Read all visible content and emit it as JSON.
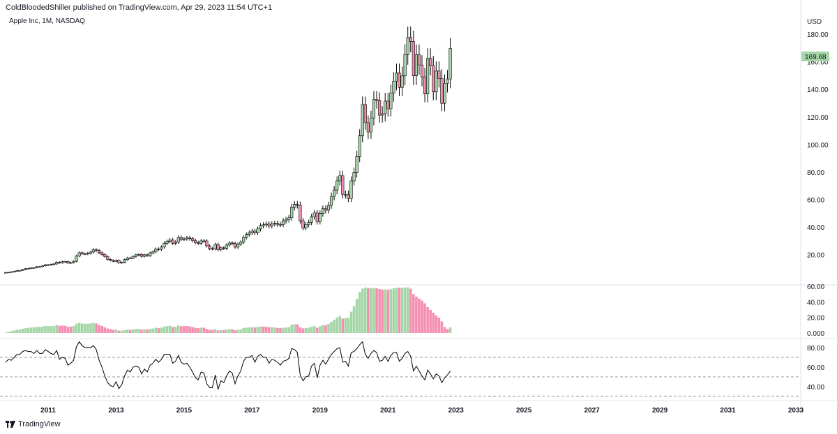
{
  "header": "ColdBloodedShiller published on TradingView.com, Apr 29, 2023 11:54 UTC+1",
  "symbol": "Apple Inc, 1M, NASDAQ",
  "currency": "USD",
  "footer_brand": "TradingView",
  "colors": {
    "up": "#a5d6a7",
    "down": "#f48fb1",
    "wick": "#000000",
    "price_label": "#a5d6a7",
    "rsi_line": "#000000"
  },
  "chart_data": [
    {
      "type": "candlestick",
      "title": "Apple Inc, 1M, NASDAQ",
      "ylabel": "USD",
      "ylim": [
        0,
        190
      ],
      "xlim": [
        2009.8,
        2033.3
      ],
      "x_ticks": [
        "2011",
        "2013",
        "2015",
        "2017",
        "2019",
        "2021",
        "2023",
        "2025",
        "2027",
        "2029",
        "2031",
        "2033"
      ],
      "y_ticks": [
        "20.00",
        "40.00",
        "60.00",
        "80.00",
        "100.00",
        "120.00",
        "140.00",
        "160.00",
        "180.00"
      ],
      "last_price": "169.68",
      "series": [
        {
          "close": [
            7.0,
            7.2,
            7.5,
            7.8,
            8.4,
            8.5,
            9.2,
            9.7,
            10.0,
            10.4,
            10.5,
            11.2,
            11.2,
            11.8,
            12.6,
            12.6,
            12.8,
            13.2,
            14.5,
            14.0,
            14.9,
            15.0,
            13.8,
            14.2,
            15.1,
            19.0,
            21.3,
            20.6,
            20.5,
            21.0,
            21.8,
            23.5,
            23.0,
            21.3,
            20.1,
            18.6,
            16.5,
            15.8,
            15.1,
            15.8,
            14.0,
            14.3,
            16.3,
            17.6,
            17.5,
            18.6,
            19.8,
            20.1,
            18.7,
            19.8,
            19.2,
            21.2,
            22.0,
            24.1,
            23.8,
            25.5,
            28.2,
            29.6,
            30.6,
            28.2,
            29.1,
            32.5,
            31.2,
            31.4,
            32.1,
            31.5,
            30.2,
            28.7,
            28.2,
            29.9,
            29.9,
            26.3,
            24.3,
            24.2,
            27.4,
            23.4,
            24.9,
            24.4,
            26.9,
            28.4,
            28.2,
            25.4,
            27.6,
            29.0,
            32.6,
            34.6,
            35.9,
            37.0,
            36.0,
            38.6,
            41.0,
            41.6,
            42.3,
            40.9,
            42.3,
            42.7,
            41.9,
            41.8,
            44.5,
            45.3,
            46.7,
            54.5,
            56.4,
            55.9,
            44.5,
            39.4,
            41.7,
            43.3,
            47.5,
            50.2,
            43.8,
            49.8,
            53.3,
            52.2,
            55.8,
            62.2,
            66.8,
            73.4,
            77.4,
            63.6,
            63.6,
            60.8,
            73.4,
            79.6,
            91.2,
            106.3,
            129.0,
            115.8,
            108.9,
            119.1,
            132.7,
            131.9,
            121.3,
            122.2,
            131.5,
            125.9,
            137.3,
            145.9,
            151.8,
            141.5,
            149.8,
            165.3,
            177.6,
            174.8,
            149.9,
            165.1,
            157.7,
            148.8,
            136.7,
            162.5,
            157.2,
            138.2,
            153.3,
            148.0,
            129.9,
            144.3,
            147.4,
            169.7
          ]
        }
      ]
    },
    {
      "type": "bar",
      "y_ticks": [
        "0.000",
        "20.00",
        "40.00",
        "60.00"
      ],
      "ylim": [
        0,
        62
      ],
      "values": [
        0.5,
        1.5,
        2.4,
        3.3,
        4.3,
        4.4,
        5.4,
        6.2,
        6.5,
        7.1,
        7.2,
        7.9,
        7.8,
        8.2,
        9.0,
        8.8,
        8.8,
        9.0,
        10.2,
        9.2,
        9.6,
        9.4,
        8.0,
        8.2,
        8.8,
        11.8,
        13.1,
        12.2,
        11.8,
        11.8,
        12.2,
        13.0,
        12.2,
        10.4,
        9.0,
        7.4,
        5.7,
        5.0,
        4.2,
        4.5,
        3.0,
        3.0,
        3.8,
        4.5,
        4.2,
        4.6,
        5.3,
        5.3,
        4.3,
        4.8,
        4.3,
        5.3,
        5.7,
        6.7,
        6.2,
        6.9,
        8.3,
        8.8,
        9.3,
        7.8,
        8.1,
        9.7,
        8.9,
        8.8,
        9.0,
        8.5,
        7.7,
        6.6,
        6.2,
        6.9,
        6.8,
        5.1,
        4.1,
        3.9,
        5.2,
        3.3,
        3.9,
        3.6,
        4.6,
        5.1,
        4.8,
        3.4,
        4.2,
        4.6,
        6.2,
        6.9,
        7.2,
        7.5,
        7.2,
        7.9,
        8.3,
        8.2,
        8.0,
        7.3,
        7.4,
        7.1,
        6.6,
        6.2,
        6.8,
        7.0,
        7.5,
        10.4,
        11.3,
        11.2,
        7.2,
        5.9,
        6.4,
        6.8,
        8.1,
        9.0,
        6.8,
        8.7,
        10.2,
        10.1,
        11.6,
        14.3,
        16.8,
        19.9,
        21.7,
        18.5,
        19.2,
        19.4,
        27.3,
        34.6,
        43.8,
        52.7,
        57.1,
        58.5,
        57.8,
        58.1,
        57.5,
        57.7,
        56.3,
        55.7,
        56.0,
        55.6,
        56.3,
        57.6,
        58.3,
        58.3,
        58.3,
        58.5,
        58.6,
        56.8,
        49.8,
        46.8,
        44.3,
        41.7,
        38.2,
        33.3,
        29.7,
        26.1,
        22.6,
        19.8,
        14.8,
        7.6,
        5.2,
        7.2
      ],
      "bar_colors": [
        "up",
        "up",
        "up",
        "up",
        "up",
        "up",
        "up",
        "up",
        "up",
        "up",
        "up",
        "up",
        "up",
        "up",
        "up",
        "up",
        "up",
        "up",
        "up",
        "down",
        "down",
        "down",
        "down",
        "down",
        "up",
        "up",
        "up",
        "up",
        "up",
        "up",
        "up",
        "up",
        "down",
        "down",
        "down",
        "down",
        "down",
        "down",
        "down",
        "up",
        "down",
        "up",
        "up",
        "up",
        "down",
        "up",
        "up",
        "up",
        "down",
        "up",
        "down",
        "up",
        "up",
        "up",
        "down",
        "up",
        "up",
        "up",
        "up",
        "down",
        "up",
        "up",
        "down",
        "down",
        "down",
        "down",
        "down",
        "down",
        "down",
        "up",
        "down",
        "down",
        "down",
        "down",
        "up",
        "down",
        "up",
        "down",
        "up",
        "up",
        "down",
        "down",
        "up",
        "up",
        "up",
        "up",
        "up",
        "up",
        "down",
        "up",
        "up",
        "down",
        "down",
        "down",
        "up",
        "up",
        "down",
        "down",
        "up",
        "up",
        "up",
        "up",
        "up",
        "down",
        "down",
        "down",
        "up",
        "up",
        "up",
        "up",
        "down",
        "up",
        "up",
        "down",
        "up",
        "up",
        "up",
        "up",
        "up",
        "down",
        "up",
        "up",
        "up",
        "up",
        "up",
        "up",
        "up",
        "up",
        "down",
        "up",
        "up",
        "down",
        "down",
        "down",
        "up",
        "down",
        "up",
        "up",
        "up",
        "down",
        "up",
        "up",
        "up",
        "down",
        "down",
        "down",
        "down",
        "down",
        "down",
        "down",
        "down",
        "down",
        "down",
        "down",
        "down",
        "down",
        "down",
        "up"
      ]
    },
    {
      "type": "line",
      "y_ticks": [
        "40.00",
        "60.00",
        "80.00"
      ],
      "ylim": [
        25,
        92
      ],
      "guides": [
        70,
        50,
        30
      ],
      "values": [
        65,
        68,
        67,
        70,
        73,
        73,
        76,
        77,
        76,
        76,
        74,
        77,
        74,
        74,
        78,
        76,
        74,
        73,
        77,
        68,
        70,
        69,
        62,
        64,
        67,
        81,
        86,
        82,
        80,
        80,
        80,
        82,
        78,
        67,
        60,
        51,
        44,
        41,
        40,
        45,
        38,
        42,
        51,
        57,
        55,
        60,
        61,
        60,
        53,
        58,
        55,
        62,
        64,
        68,
        65,
        68,
        73,
        73,
        73,
        64,
        66,
        72,
        65,
        63,
        64,
        60,
        55,
        49,
        47,
        55,
        54,
        43,
        39,
        39,
        52,
        37,
        46,
        44,
        51,
        56,
        54,
        43,
        51,
        56,
        66,
        70,
        70,
        72,
        65,
        71,
        73,
        70,
        70,
        64,
        68,
        67,
        65,
        62,
        66,
        67,
        69,
        79,
        78,
        75,
        52,
        46,
        50,
        51,
        61,
        64,
        49,
        62,
        67,
        63,
        68,
        73,
        76,
        79,
        80,
        65,
        66,
        61,
        75,
        76,
        79,
        83,
        86,
        73,
        69,
        74,
        77,
        75,
        66,
        67,
        71,
        66,
        72,
        75,
        75,
        66,
        69,
        74,
        76,
        71,
        56,
        61,
        56,
        51,
        47,
        57,
        53,
        48,
        53,
        51,
        44,
        49,
        52,
        56
      ]
    }
  ]
}
